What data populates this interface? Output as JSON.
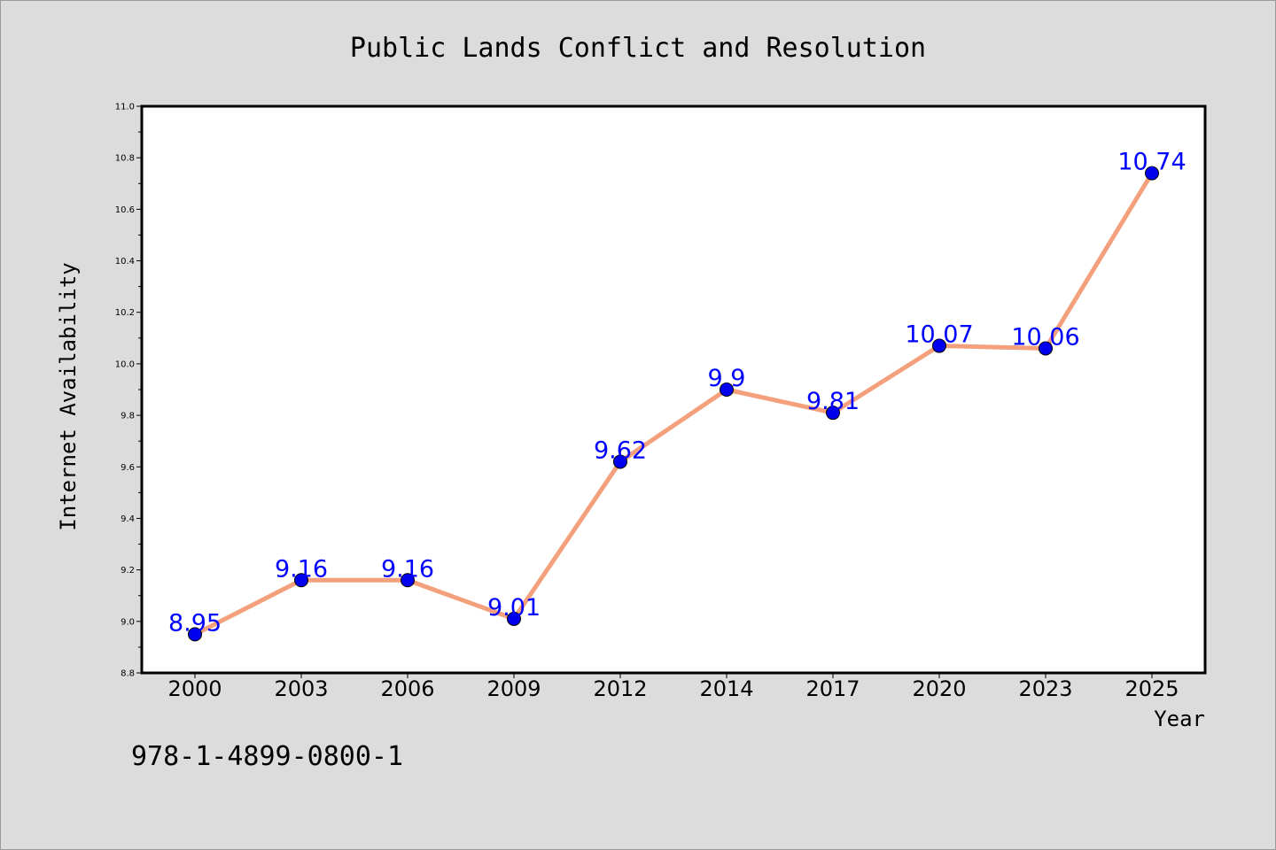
{
  "chart_data": {
    "type": "line",
    "title": "Public Lands Conflict and Resolution",
    "xlabel": "Year",
    "ylabel": "Internet Availability",
    "categories": [
      "2000",
      "2003",
      "2006",
      "2009",
      "2012",
      "2014",
      "2017",
      "2020",
      "2023",
      "2025"
    ],
    "series": [
      {
        "values": [
          8.95,
          9.16,
          9.16,
          9.01,
          9.62,
          9.9,
          9.81,
          10.07,
          10.06,
          10.74
        ],
        "data_labels": [
          "8.95",
          "9.16",
          "9.16",
          "9.01",
          "9.62",
          "9.9",
          "9.81",
          "10.07",
          "10.06",
          "10.74"
        ]
      }
    ],
    "ylim": [
      8.8,
      11.0
    ],
    "yticks": [
      "8.8",
      "9.0",
      "9.2",
      "9.4",
      "9.6",
      "9.8",
      "10.0",
      "10.2",
      "10.4",
      "10.6",
      "10.8",
      "11.0"
    ],
    "grid": false,
    "line_color": "#f4a07c",
    "marker_color": "#0000ee",
    "label_color": "#0000ff"
  },
  "footer": {
    "isbn": "978-1-4899-0800-1"
  }
}
